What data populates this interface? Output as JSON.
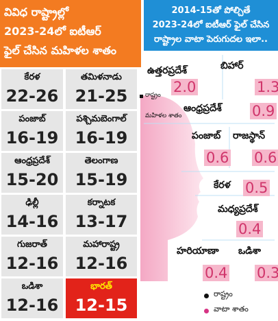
{
  "left": {
    "title": [
      "వివిధ రాష్ట్రాల్లో",
      "2023-24లో ఐటీఆర్",
      "ఫైల్ చేసిన మహిళల శాతం"
    ],
    "states": [
      {
        "name": "కేరళ",
        "value": "22-26"
      },
      {
        "name": "తమిళనాడు",
        "value": "21-25"
      },
      {
        "name": "పంజాబ్",
        "value": "16-19"
      },
      {
        "name": "పశ్చిమబెంగాల్",
        "value": "16-19"
      },
      {
        "name": "ఆంధ్రప్రదేశ్",
        "value": "15-20"
      },
      {
        "name": "తెలంగాణ",
        "value": "15-19"
      },
      {
        "name": "ఢిల్లీ",
        "value": "14-16"
      },
      {
        "name": "కర్నాటక",
        "value": "13-17"
      },
      {
        "name": "గుజరాత్",
        "value": "12-16"
      },
      {
        "name": "మహారాష్ట్ర",
        "value": "12-16"
      },
      {
        "name": "ఒడిశా",
        "value": "12-16"
      },
      {
        "name": "భారత్",
        "value": "12-15"
      }
    ],
    "legend": [
      "రాష్ట్రం",
      "మహిళల శాతం"
    ]
  },
  "right": {
    "title": [
      "2014-15తో పోల్చితే",
      "2023-24లో ఐటీఆర్ ఫైల్ చేసిన",
      "రాష్ట్రాల వాటా పెరుగుదల ఇలా.."
    ],
    "states": [
      {
        "name": "ఉత్తరప్రదేశ్",
        "value": "2.0"
      },
      {
        "name": "బిహార్",
        "value": "1.3"
      },
      {
        "name": "ఆంధ్రప్రదేశ్",
        "value": "0.9"
      },
      {
        "name": "పంజాబ్",
        "value": "0.6"
      },
      {
        "name": "రాజస్థాన్",
        "value": "0.6"
      },
      {
        "name": "కేరళ",
        "value": "0.5"
      },
      {
        "name": "మధ్యప్రదేశ్",
        "value": "0.4"
      },
      {
        "name": "హరియాణా",
        "value": "0.4"
      },
      {
        "name": "ఒడిశా",
        "value": "0.3"
      }
    ],
    "legend": [
      "రాష్ట్రం",
      "వాటా శాతం"
    ]
  }
}
